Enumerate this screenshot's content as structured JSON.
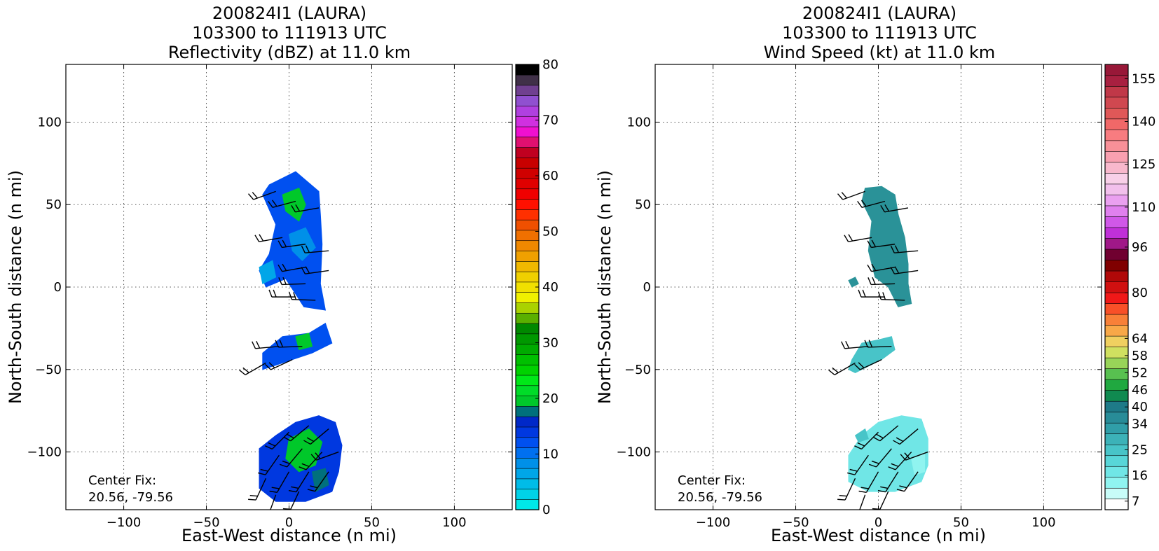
{
  "chart_data": [
    {
      "type": "heatmap",
      "title_lines": [
        "200824I1 (LAURA)",
        "103300 to 111913 UTC",
        "Reflectivity (dBZ) at 11.0 km"
      ],
      "xlabel": "East-West distance (n mi)",
      "ylabel": "North-South distance (n mi)",
      "xlim": [
        -135,
        135
      ],
      "ylim": [
        -135,
        135
      ],
      "xticks": [
        -100,
        -50,
        0,
        50,
        100
      ],
      "yticks": [
        -100,
        -50,
        0,
        50,
        100
      ],
      "xtick_labels": [
        "−100",
        "−50",
        "0",
        "50",
        "100"
      ],
      "ytick_labels": [
        "−100",
        "−50",
        "0",
        "50",
        "100"
      ],
      "grid": true,
      "annotation_lines": [
        "Center Fix:",
        "20.56, -79.56"
      ],
      "colorbar": {
        "min": 0,
        "max": 80,
        "ticks": [
          0,
          10,
          20,
          30,
          40,
          50,
          60,
          70,
          80
        ],
        "tick_labels": [
          "0",
          "10",
          "20",
          "30",
          "40",
          "50",
          "60",
          "70",
          "80"
        ],
        "colors": [
          "#00e8e8",
          "#00d2e8",
          "#00bce8",
          "#00a6e8",
          "#0090e8",
          "#0070f0",
          "#0050f0",
          "#0038e0",
          "#0028c8",
          "#00707c",
          "#00c82a",
          "#00dc28",
          "#00e818",
          "#00d200",
          "#00c000",
          "#00aa00",
          "#009800",
          "#008800",
          "#5aaf00",
          "#aad200",
          "#f0f000",
          "#f0e000",
          "#f0d000",
          "#f0b800",
          "#f0a000",
          "#f08800",
          "#f07000",
          "#f05000",
          "#ff3000",
          "#ff1000",
          "#f00000",
          "#e00000",
          "#d00000",
          "#c80000",
          "#c00020",
          "#e01070",
          "#f010d0",
          "#d030e0",
          "#b040e0",
          "#9050d0",
          "#704090",
          "#403048",
          "#000000"
        ]
      },
      "regions": [
        {
          "points": [
            [
              -12,
              62
            ],
            [
              4,
              70
            ],
            [
              18,
              58
            ],
            [
              19,
              44
            ],
            [
              20,
              26
            ],
            [
              19,
              2
            ],
            [
              22,
              -14
            ],
            [
              9,
              -12
            ],
            [
              -2,
              5
            ],
            [
              -14,
              0
            ],
            [
              -18,
              10
            ],
            [
              -12,
              20
            ],
            [
              -8,
              38
            ],
            [
              -16,
              56
            ]
          ],
          "fill": "#0050f0"
        },
        {
          "points": [
            [
              -4,
              56
            ],
            [
              6,
              60
            ],
            [
              10,
              50
            ],
            [
              6,
              40
            ],
            [
              -2,
              46
            ]
          ],
          "fill": "#00c82a"
        },
        {
          "points": [
            [
              0,
              32
            ],
            [
              10,
              36
            ],
            [
              16,
              24
            ],
            [
              8,
              16
            ],
            [
              2,
              22
            ]
          ],
          "fill": "#0090e8"
        },
        {
          "points": [
            [
              -18,
              12
            ],
            [
              -10,
              16
            ],
            [
              -8,
              6
            ],
            [
              -16,
              2
            ]
          ],
          "fill": "#00a6e8"
        },
        {
          "points": [
            [
              -16,
              -40
            ],
            [
              -4,
              -30
            ],
            [
              12,
              -28
            ],
            [
              22,
              -22
            ],
            [
              26,
              -34
            ],
            [
              14,
              -40
            ],
            [
              2,
              -44
            ],
            [
              -10,
              -48
            ],
            [
              -16,
              -50
            ]
          ],
          "fill": "#0050f0"
        },
        {
          "points": [
            [
              4,
              -30
            ],
            [
              12,
              -28
            ],
            [
              14,
              -36
            ],
            [
              6,
              -38
            ]
          ],
          "fill": "#00c82a"
        },
        {
          "points": [
            [
              -18,
              -98
            ],
            [
              -8,
              -90
            ],
            [
              4,
              -82
            ],
            [
              18,
              -78
            ],
            [
              28,
              -82
            ],
            [
              32,
              -96
            ],
            [
              30,
              -112
            ],
            [
              26,
              -124
            ],
            [
              10,
              -130
            ],
            [
              -8,
              -130
            ],
            [
              -18,
              -122
            ]
          ],
          "fill": "#0038e0"
        },
        {
          "points": [
            [
              0,
              -92
            ],
            [
              12,
              -86
            ],
            [
              20,
              -94
            ],
            [
              16,
              -108
            ],
            [
              6,
              -112
            ],
            [
              -2,
              -104
            ]
          ],
          "fill": "#00c82a"
        },
        {
          "points": [
            [
              14,
              -112
            ],
            [
              22,
              -110
            ],
            [
              24,
              -120
            ],
            [
              16,
              -124
            ]
          ],
          "fill": "#00707c"
        }
      ],
      "wind_barbs": [
        {
          "x": -8,
          "y": 58,
          "dir": 250
        },
        {
          "x": 4,
          "y": 52,
          "dir": 255
        },
        {
          "x": 18,
          "y": 48,
          "dir": 260
        },
        {
          "x": -4,
          "y": 30,
          "dir": 260
        },
        {
          "x": 10,
          "y": 26,
          "dir": 262
        },
        {
          "x": 24,
          "y": 22,
          "dir": 265
        },
        {
          "x": 10,
          "y": 12,
          "dir": 260
        },
        {
          "x": 24,
          "y": 10,
          "dir": 262
        },
        {
          "x": 10,
          "y": 2,
          "dir": 268
        },
        {
          "x": 4,
          "y": -6,
          "dir": 270
        },
        {
          "x": 16,
          "y": -8,
          "dir": 272
        },
        {
          "x": -6,
          "y": -36,
          "dir": 265
        },
        {
          "x": 8,
          "y": -36,
          "dir": 268
        },
        {
          "x": -14,
          "y": -46,
          "dir": 240
        },
        {
          "x": 2,
          "y": -44,
          "dir": 245
        },
        {
          "x": 0,
          "y": -88,
          "dir": 225
        },
        {
          "x": 12,
          "y": -84,
          "dir": 230
        },
        {
          "x": 24,
          "y": -86,
          "dir": 230
        },
        {
          "x": -6,
          "y": -102,
          "dir": 215
        },
        {
          "x": 8,
          "y": -98,
          "dir": 220
        },
        {
          "x": 20,
          "y": -100,
          "dir": 222
        },
        {
          "x": 30,
          "y": -100,
          "dir": 250
        },
        {
          "x": -14,
          "y": -116,
          "dir": 205
        },
        {
          "x": 0,
          "y": -112,
          "dir": 210
        },
        {
          "x": 12,
          "y": -112,
          "dir": 212
        },
        {
          "x": 24,
          "y": -112,
          "dir": 215
        },
        {
          "x": -8,
          "y": -126,
          "dir": 200
        },
        {
          "x": 6,
          "y": -124,
          "dir": 205
        }
      ]
    },
    {
      "type": "heatmap",
      "title_lines": [
        "200824I1 (LAURA)",
        "103300 to 111913 UTC",
        "Wind Speed (kt) at 11.0 km"
      ],
      "xlabel": "East-West distance (n mi)",
      "ylabel": "North-South distance (n mi)",
      "xlim": [
        -135,
        135
      ],
      "ylim": [
        -135,
        135
      ],
      "xticks": [
        -100,
        -50,
        0,
        50,
        100
      ],
      "yticks": [
        -100,
        -50,
        0,
        50,
        100
      ],
      "xtick_labels": [
        "−100",
        "−50",
        "0",
        "50",
        "100"
      ],
      "ytick_labels": [
        "−100",
        "−50",
        "0",
        "50",
        "100"
      ],
      "grid": true,
      "annotation_lines": [
        "Center Fix:",
        "20.56, -79.56"
      ],
      "colorbar": {
        "min": 4,
        "max": 160,
        "ticks": [
          7,
          16,
          25,
          34,
          40,
          46,
          52,
          58,
          64,
          80,
          96,
          110,
          125,
          140,
          155
        ],
        "tick_labels": [
          "7",
          "16",
          "25",
          "34",
          "40",
          "46",
          "52",
          "58",
          "64",
          "80",
          "96",
          "110",
          "125",
          "140",
          "155"
        ],
        "colors": [
          "#ffffff",
          "#c8fcf8",
          "#90f4f0",
          "#70e6e6",
          "#58d6d8",
          "#48c4c8",
          "#3cb2b8",
          "#309ea8",
          "#288c98",
          "#1e7a88",
          "#108a50",
          "#20a840",
          "#58c050",
          "#98d458",
          "#d0e060",
          "#f0d060",
          "#f8a848",
          "#f88038",
          "#f85028",
          "#f01818",
          "#d01010",
          "#b00808",
          "#800000",
          "#700030",
          "#a01888",
          "#c030d8",
          "#d058e8",
          "#e080ee",
          "#eaa0f0",
          "#f2c0ec",
          "#f8d0e8",
          "#f8b8cc",
          "#f8a0b0",
          "#f89098",
          "#f87c80",
          "#f06868",
          "#e05858",
          "#d04850",
          "#c03848",
          "#a82040",
          "#981838"
        ]
      },
      "regions": [
        {
          "points": [
            [
              -8,
              60
            ],
            [
              2,
              61
            ],
            [
              10,
              56
            ],
            [
              12,
              44
            ],
            [
              16,
              30
            ],
            [
              18,
              14
            ],
            [
              18,
              2
            ],
            [
              20,
              -10
            ],
            [
              12,
              -12
            ],
            [
              6,
              0
            ],
            [
              -2,
              6
            ],
            [
              -6,
              22
            ],
            [
              -4,
              40
            ],
            [
              -10,
              52
            ]
          ],
          "fill": "#2a9298"
        },
        {
          "points": [
            [
              -18,
              4
            ],
            [
              -14,
              6
            ],
            [
              -12,
              2
            ],
            [
              -16,
              0
            ]
          ],
          "fill": "#2a9298"
        },
        {
          "points": [
            [
              -16,
              -44
            ],
            [
              -10,
              -34
            ],
            [
              0,
              -32
            ],
            [
              8,
              -30
            ],
            [
              10,
              -38
            ],
            [
              2,
              -44
            ],
            [
              -6,
              -48
            ],
            [
              -14,
              -52
            ],
            [
              -18,
              -50
            ]
          ],
          "fill": "#48c4c8"
        },
        {
          "points": [
            [
              -18,
              -102
            ],
            [
              -10,
              -90
            ],
            [
              0,
              -82
            ],
            [
              14,
              -78
            ],
            [
              26,
              -80
            ],
            [
              30,
              -92
            ],
            [
              30,
              -108
            ],
            [
              26,
              -118
            ],
            [
              10,
              -124
            ],
            [
              -6,
              -124
            ],
            [
              -18,
              -118
            ]
          ],
          "fill": "#70e6e6"
        },
        {
          "points": [
            [
              -14,
              -90
            ],
            [
              -8,
              -86
            ],
            [
              -6,
              -92
            ],
            [
              -12,
              -94
            ]
          ],
          "fill": "#48c4c8"
        },
        {
          "points": [
            [
              20,
              -104
            ],
            [
              28,
              -100
            ],
            [
              28,
              -112
            ],
            [
              22,
              -114
            ]
          ],
          "fill": "#90f4f0"
        }
      ],
      "wind_barbs": [
        {
          "x": -8,
          "y": 58,
          "dir": 250
        },
        {
          "x": 4,
          "y": 52,
          "dir": 255
        },
        {
          "x": 18,
          "y": 48,
          "dir": 260
        },
        {
          "x": -4,
          "y": 30,
          "dir": 260
        },
        {
          "x": 10,
          "y": 26,
          "dir": 262
        },
        {
          "x": 24,
          "y": 22,
          "dir": 265
        },
        {
          "x": 10,
          "y": 12,
          "dir": 260
        },
        {
          "x": 24,
          "y": 10,
          "dir": 262
        },
        {
          "x": 10,
          "y": 2,
          "dir": 268
        },
        {
          "x": 4,
          "y": -6,
          "dir": 270
        },
        {
          "x": 16,
          "y": -8,
          "dir": 272
        },
        {
          "x": -6,
          "y": -36,
          "dir": 265
        },
        {
          "x": 8,
          "y": -36,
          "dir": 268
        },
        {
          "x": -14,
          "y": -46,
          "dir": 240
        },
        {
          "x": 2,
          "y": -44,
          "dir": 245
        },
        {
          "x": 0,
          "y": -88,
          "dir": 225
        },
        {
          "x": 12,
          "y": -84,
          "dir": 230
        },
        {
          "x": 24,
          "y": -86,
          "dir": 230
        },
        {
          "x": -6,
          "y": -102,
          "dir": 215
        },
        {
          "x": 8,
          "y": -98,
          "dir": 220
        },
        {
          "x": 20,
          "y": -100,
          "dir": 222
        },
        {
          "x": 30,
          "y": -100,
          "dir": 250
        },
        {
          "x": -14,
          "y": -116,
          "dir": 205
        },
        {
          "x": 0,
          "y": -112,
          "dir": 210
        },
        {
          "x": 12,
          "y": -112,
          "dir": 212
        },
        {
          "x": 24,
          "y": -112,
          "dir": 215
        },
        {
          "x": -8,
          "y": -126,
          "dir": 200
        },
        {
          "x": 6,
          "y": -124,
          "dir": 205
        }
      ]
    }
  ]
}
